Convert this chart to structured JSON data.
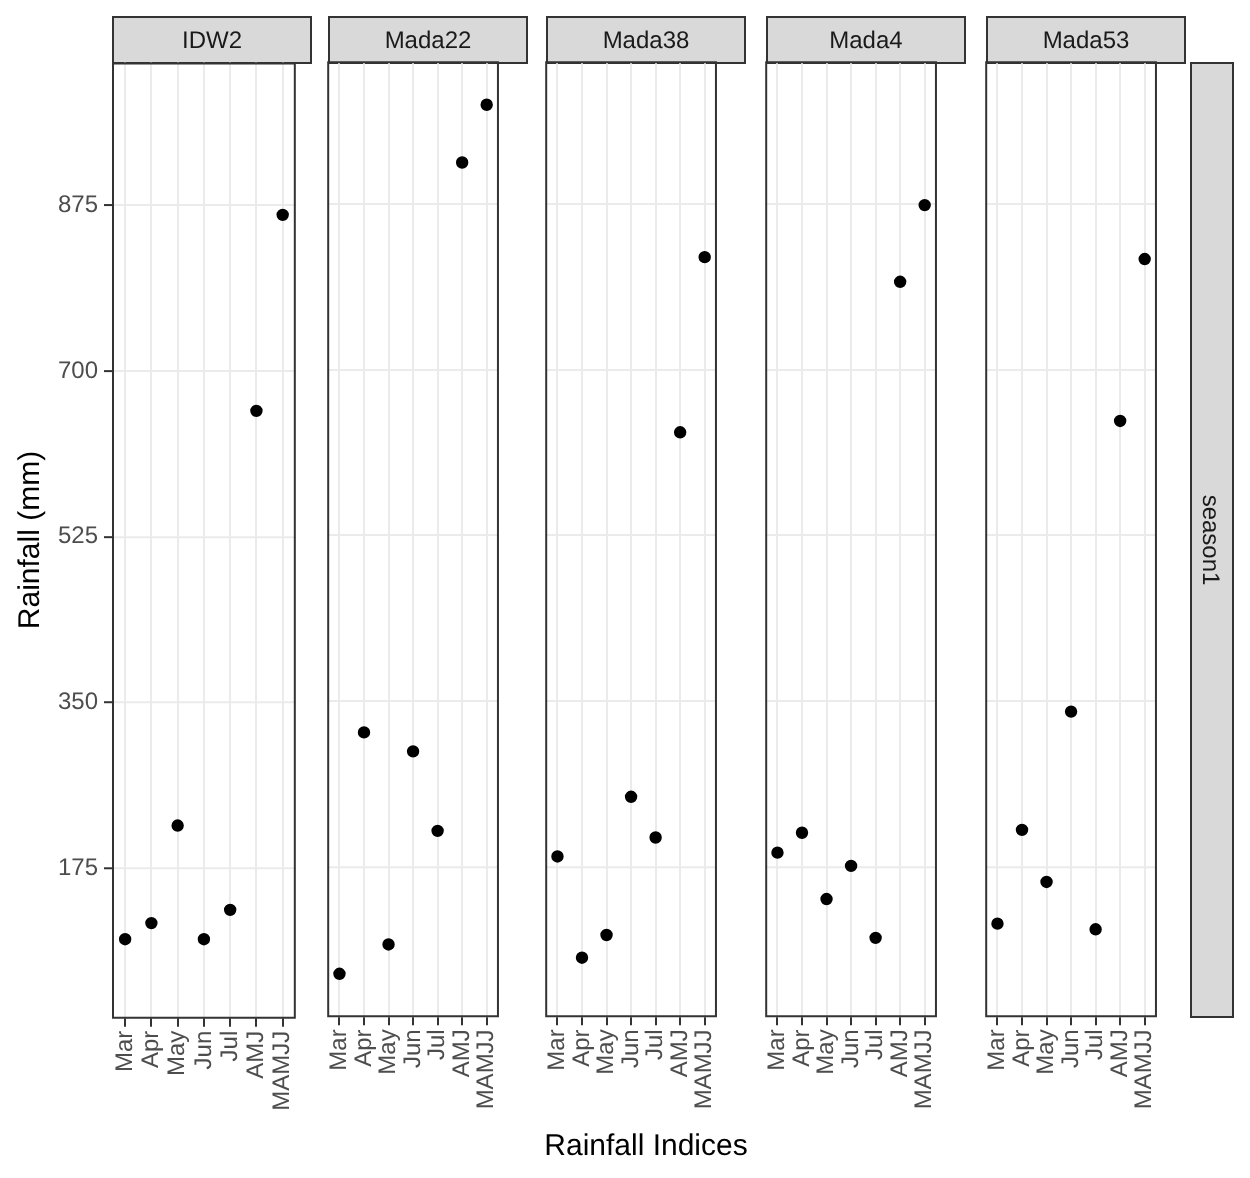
{
  "chart_data": [
    {
      "type": "scatter",
      "title": "IDW2",
      "ylabel": "Rainfall (mm)",
      "categories": [
        "Mar",
        "Apr",
        "May",
        "Jun",
        "Jul",
        "AMJ",
        "MAMJJ"
      ],
      "values": [
        100,
        117,
        220,
        100,
        131,
        658,
        865
      ],
      "color": "#000000",
      "marker": "circle",
      "ylim": [
        16,
        1026
      ],
      "yticks": [
        175,
        350,
        525,
        700,
        875
      ],
      "grid": true
    },
    {
      "type": "scatter",
      "title": "Mada22",
      "categories": [
        "Mar",
        "Apr",
        "May",
        "Jun",
        "Jul",
        "AMJ",
        "MAMJJ"
      ],
      "values": [
        62,
        317,
        93,
        297,
        213,
        919,
        980
      ],
      "color": "#000000",
      "marker": "circle",
      "ylim": [
        16,
        1026
      ],
      "yticks": [
        175,
        350,
        525,
        700,
        875
      ],
      "grid": true,
      "tick_labels": "x"
    },
    {
      "type": "scatter",
      "title": "Mada38",
      "xlabel": "Rainfall Indices",
      "categories": [
        "Mar",
        "Apr",
        "May",
        "Jun",
        "Jul",
        "AMJ",
        "MAMJJ"
      ],
      "values": [
        186,
        79,
        103,
        249,
        206,
        634,
        819
      ],
      "color": "#000000",
      "marker": "circle",
      "ylim": [
        16,
        1026
      ],
      "yticks": [
        175,
        350,
        525,
        700,
        875
      ],
      "grid": true,
      "tick_labels": "x"
    },
    {
      "type": "scatter",
      "title": "Mada4",
      "categories": [
        "Mar",
        "Apr",
        "May",
        "Jun",
        "Jul",
        "AMJ",
        "MAMJJ"
      ],
      "values": [
        190,
        211,
        141,
        176,
        100,
        793,
        874
      ],
      "color": "#000000",
      "marker": "circle",
      "ylim": [
        16,
        1026
      ],
      "yticks": [
        175,
        350,
        525,
        700,
        875
      ],
      "grid": true,
      "tick_labels": "x"
    },
    {
      "type": "scatter",
      "title": "Mada53",
      "annotations": [
        "season1"
      ],
      "categories": [
        "Mar",
        "Apr",
        "May",
        "Jun",
        "Jul",
        "AMJ",
        "MAMJJ"
      ],
      "values": [
        115,
        214,
        159,
        339,
        109,
        646,
        817
      ],
      "color": "#000000",
      "marker": "circle",
      "ylim": [
        16,
        1026
      ],
      "yticks": [
        175,
        350,
        525,
        700,
        875
      ],
      "grid": true,
      "tick_labels": "x"
    }
  ]
}
